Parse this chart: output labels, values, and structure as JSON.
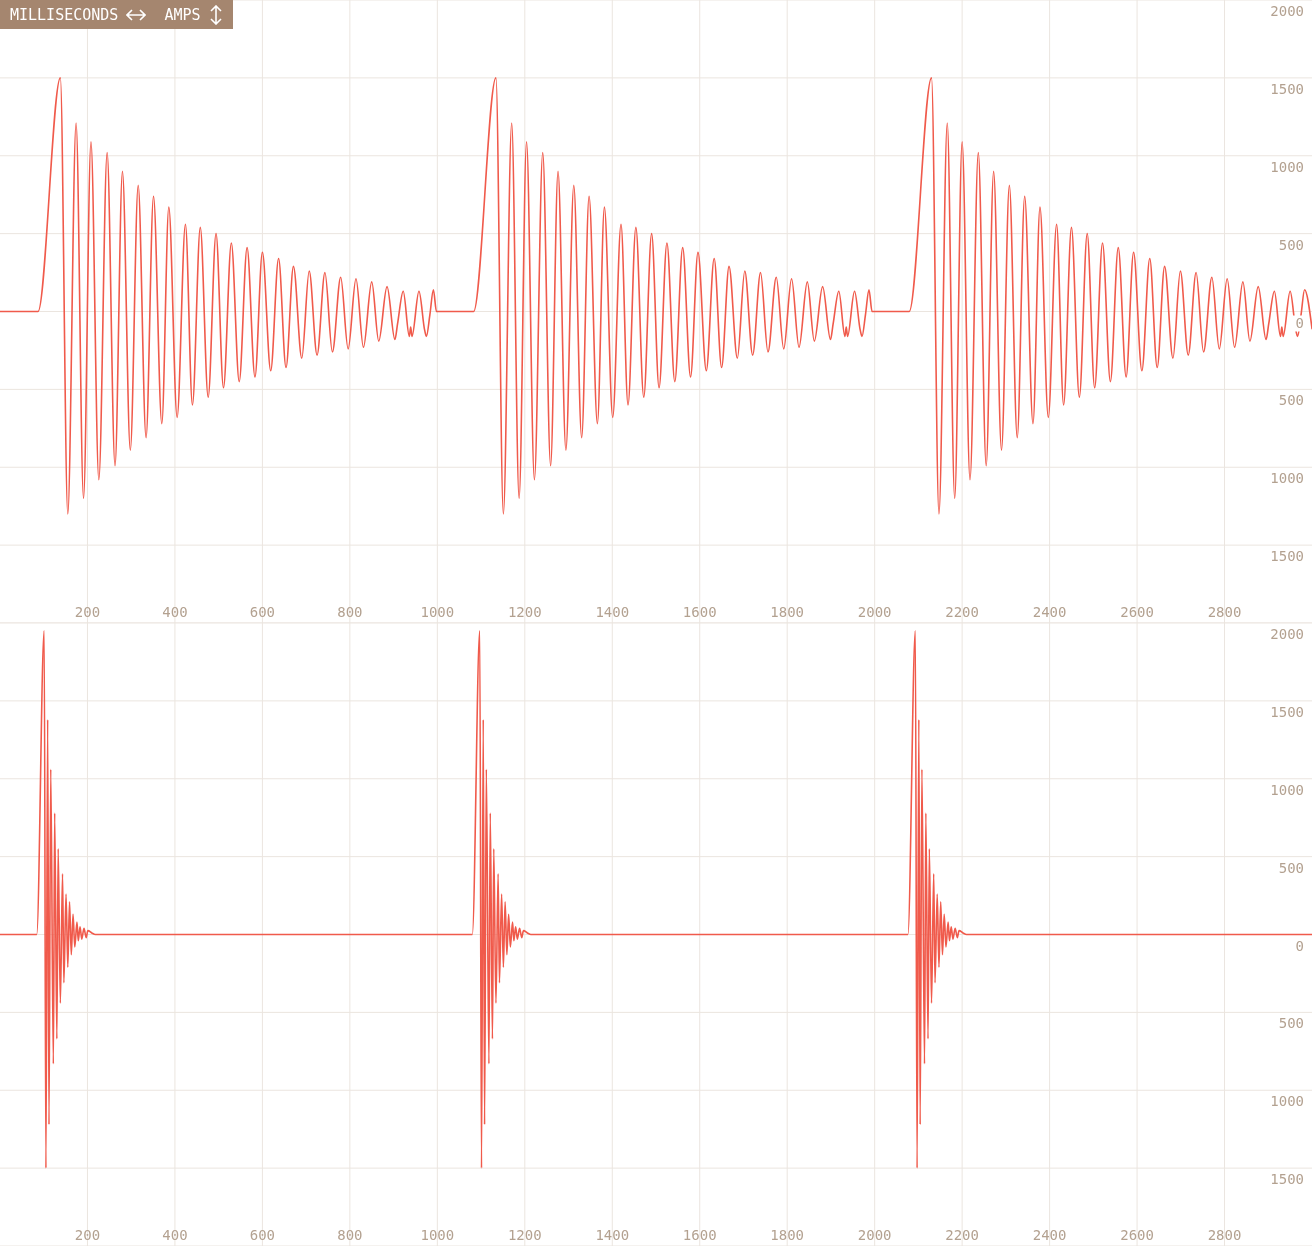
{
  "chart_data": [
    {
      "type": "line",
      "xlabel": "MILLISECONDS",
      "ylabel": "AMPS",
      "xlim": [
        0,
        3000
      ],
      "ylim": [
        -2000,
        2000
      ],
      "xticks": [
        200,
        400,
        600,
        800,
        1000,
        1200,
        1400,
        1600,
        1800,
        2000,
        2200,
        2400,
        2600,
        2800
      ],
      "yticks": [
        {
          "value": -1500,
          "label": "1500"
        },
        {
          "value": -1000,
          "label": "1000"
        },
        {
          "value": -500,
          "label": "500"
        },
        0,
        500,
        1000,
        1500,
        2000
      ],
      "grid": true,
      "line_style": "solid",
      "series": [
        {
          "color": "#f05a4b",
          "x": [
            0,
            87,
            138,
            155,
            174,
            191,
            208,
            226,
            245,
            263,
            280,
            298,
            316,
            334,
            351,
            370,
            386,
            405,
            424,
            440,
            458,
            476,
            494,
            511,
            529,
            547,
            565,
            583,
            600,
            619,
            637,
            654,
            671,
            690,
            707,
            725,
            743,
            760,
            779,
            796,
            814,
            831,
            850,
            866,
            885,
            903,
            909,
            922,
            936,
            939,
            942,
            958,
            971,
            975,
            983,
            991,
            998,
            1083,
            1134,
            1151,
            1170,
            1187,
            1204,
            1222,
            1241,
            1259,
            1276,
            1294,
            1312,
            1330,
            1347,
            1366,
            1382,
            1401,
            1420,
            1436,
            1454,
            1472,
            1490,
            1507,
            1525,
            1543,
            1561,
            1579,
            1596,
            1615,
            1633,
            1650,
            1667,
            1686,
            1703,
            1721,
            1739,
            1756,
            1775,
            1792,
            1810,
            1827,
            1846,
            1862,
            1881,
            1899,
            1905,
            1918,
            1932,
            1935,
            1938,
            1954,
            1967,
            1971,
            1979,
            1987,
            1994,
            2079,
            2130,
            2147,
            2166,
            2183,
            2200,
            2218,
            2237,
            2255,
            2272,
            2290,
            2308,
            2326,
            2343,
            2362,
            2378,
            2397,
            2416,
            2432,
            2450,
            2468,
            2486,
            2503,
            2521,
            2539,
            2557,
            2575,
            2592,
            2611,
            2629,
            2646,
            2663,
            2682,
            2699,
            2717,
            2735,
            2752,
            2771,
            2788,
            2806,
            2823,
            2842,
            2858,
            2877,
            2895,
            2901,
            2914,
            2928,
            2931,
            2934,
            2950,
            2963,
            2967,
            2975,
            2983,
            3000
          ],
          "values": [
            0,
            0,
            1500,
            -1300,
            1210,
            -1200,
            1090,
            -1080,
            1020,
            -990,
            900,
            -890,
            810,
            -810,
            740,
            -720,
            670,
            -680,
            560,
            -600,
            540,
            -550,
            500,
            -490,
            440,
            -450,
            410,
            -420,
            380,
            -380,
            340,
            -360,
            290,
            -300,
            260,
            -280,
            250,
            -260,
            220,
            -240,
            210,
            -230,
            190,
            -190,
            160,
            -180,
            -80,
            130,
            -160,
            -100,
            -160,
            130,
            -120,
            -160,
            -20,
            140,
            0,
            0,
            1500,
            -1300,
            1210,
            -1200,
            1090,
            -1080,
            1020,
            -990,
            900,
            -890,
            810,
            -810,
            740,
            -720,
            670,
            -680,
            560,
            -600,
            540,
            -550,
            500,
            -490,
            440,
            -450,
            410,
            -420,
            380,
            -380,
            340,
            -360,
            290,
            -300,
            260,
            -280,
            250,
            -260,
            220,
            -240,
            210,
            -230,
            190,
            -190,
            160,
            -180,
            -80,
            130,
            -160,
            -100,
            -160,
            130,
            -120,
            -160,
            -20,
            140,
            0,
            0,
            1500,
            -1300,
            1210,
            -1200,
            1090,
            -1080,
            1020,
            -990,
            900,
            -890,
            810,
            -810,
            740,
            -720,
            670,
            -680,
            560,
            -600,
            540,
            -550,
            500,
            -490,
            440,
            -450,
            410,
            -420,
            380,
            -380,
            340,
            -360,
            290,
            -300,
            260,
            -280,
            250,
            -260,
            220,
            -240,
            210,
            -230,
            190,
            -190,
            160,
            -180,
            -80,
            130,
            -160,
            -100,
            -160,
            130,
            -120,
            -160,
            -20,
            140,
            -110
          ]
        }
      ]
    },
    {
      "type": "line",
      "xlim": [
        0,
        3000
      ],
      "ylim": [
        -2000,
        2000
      ],
      "xticks": [
        200,
        400,
        600,
        800,
        1000,
        1200,
        1400,
        1600,
        1800,
        2000,
        2200,
        2400,
        2600,
        2800
      ],
      "yticks": [
        {
          "value": -1500,
          "label": "1500"
        },
        {
          "value": -1000,
          "label": "1000"
        },
        {
          "value": -500,
          "label": "500"
        },
        0,
        500,
        1000,
        1500,
        2000
      ],
      "grid": true,
      "line_style": "solid",
      "series": [
        {
          "color": "#f05a4b",
          "x": [
            0,
            84,
            86,
            91,
            95,
            101,
            105,
            109,
            112,
            116,
            122,
            125,
            130,
            133,
            138,
            143,
            146,
            151,
            155,
            159,
            163,
            167,
            171,
            176,
            179,
            183,
            187,
            192,
            197,
            201,
            210,
            218,
            1080,
            1082,
            1087,
            1091,
            1097,
            1101,
            1105,
            1108,
            1112,
            1118,
            1121,
            1126,
            1129,
            1134,
            1139,
            1142,
            1147,
            1151,
            1155,
            1159,
            1163,
            1167,
            1172,
            1175,
            1179,
            1183,
            1188,
            1193,
            1197,
            1206,
            1214,
            2076,
            2078,
            2083,
            2087,
            2093,
            2097,
            2101,
            2104,
            2108,
            2114,
            2117,
            2122,
            2125,
            2130,
            2135,
            2138,
            2143,
            2147,
            2151,
            2155,
            2159,
            2163,
            2168,
            2171,
            2175,
            2179,
            2184,
            2189,
            2193,
            2202,
            2210,
            3000
          ],
          "values": [
            0,
            0,
            null,
            null,
            null,
            1950,
            -1500,
            1380,
            -1220,
            1060,
            -830,
            780,
            -670,
            550,
            -440,
            390,
            -310,
            260,
            -210,
            210,
            -130,
            130,
            -80,
            80,
            -40,
            50,
            -30,
            40,
            -20,
            25,
            10,
            0,
            0,
            null,
            null,
            null,
            1950,
            -1500,
            1380,
            -1220,
            1060,
            -830,
            780,
            -670,
            550,
            -440,
            390,
            -310,
            260,
            -210,
            210,
            -130,
            130,
            -80,
            80,
            -40,
            50,
            -30,
            40,
            -20,
            25,
            10,
            0,
            0,
            null,
            null,
            null,
            1950,
            -1500,
            1380,
            -1220,
            1060,
            -830,
            780,
            -670,
            550,
            -440,
            390,
            -310,
            260,
            -210,
            210,
            -130,
            130,
            -80,
            80,
            -40,
            50,
            -30,
            40,
            -20,
            25,
            10,
            0,
            0
          ]
        }
      ]
    }
  ]
}
